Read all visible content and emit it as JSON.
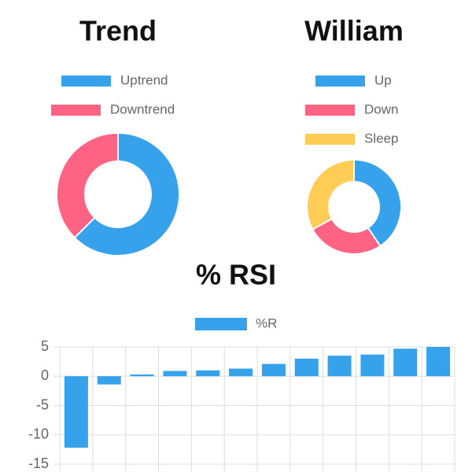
{
  "chart_data": [
    {
      "type": "doughnut",
      "title": "Trend",
      "categories": [
        "Uptrend",
        "Downtrend"
      ],
      "values": [
        62.5,
        37.5
      ],
      "colors": [
        "#36a2eb",
        "#ff6384"
      ]
    },
    {
      "type": "doughnut",
      "title": "William",
      "categories": [
        "Up",
        "Down",
        "Sleep"
      ],
      "values": [
        40.6,
        26.5,
        32.9
      ],
      "colors": [
        "#36a2eb",
        "#ff6384",
        "#ffcd56"
      ]
    },
    {
      "type": "bar",
      "title": "% RSI",
      "categories": [
        null,
        null,
        null,
        null,
        null,
        null,
        null,
        null,
        null,
        null,
        null,
        null
      ],
      "series": [
        {
          "name": "%R",
          "color": "#36a2eb",
          "values": [
            -12.2,
            -1.4,
            0.3,
            0.9,
            1.0,
            1.3,
            2.1,
            3.0,
            3.5,
            3.7,
            4.7,
            5.0
          ]
        }
      ],
      "ylim": [
        -15,
        5
      ],
      "yticks": [
        5,
        0,
        -5,
        -10,
        -15
      ],
      "grid": true
    }
  ]
}
